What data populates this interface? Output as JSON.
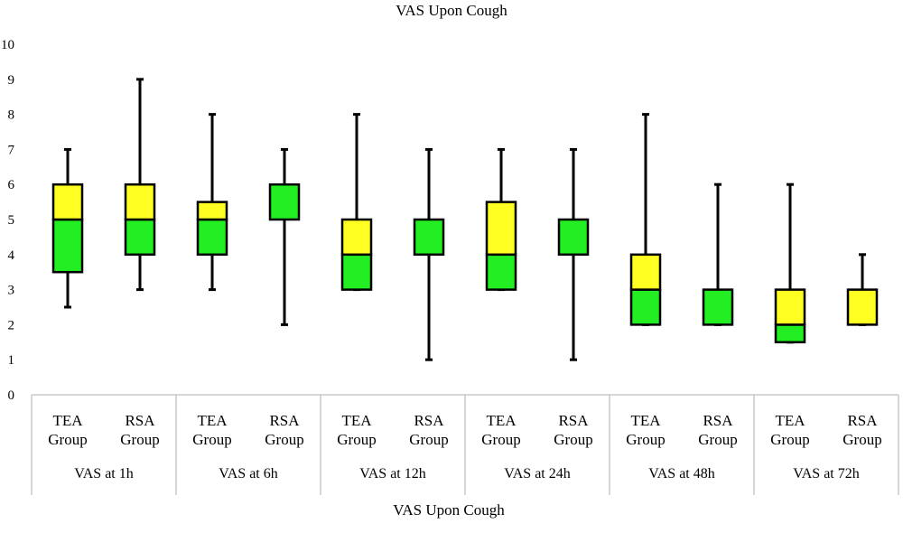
{
  "chart_data": {
    "type": "box",
    "title": "VAS Upon Cough",
    "xlabel": "VAS Upon Cough",
    "ylabel": "",
    "ylim": [
      0,
      10
    ],
    "yticks": [
      0,
      1,
      2,
      3,
      4,
      5,
      6,
      7,
      8,
      9,
      10
    ],
    "grid": false,
    "colors": {
      "lower_box": "#22ee22",
      "upper_box": "#ffff22",
      "line": "#000000"
    },
    "groups": [
      {
        "label": "VAS at 1h",
        "boxes": [
          {
            "label_line1": "TEA",
            "label_line2": "Group",
            "min": 2.5,
            "q1": 3.5,
            "median": 5,
            "q3": 6,
            "max": 7
          },
          {
            "label_line1": "RSA",
            "label_line2": "Group",
            "min": 3,
            "q1": 4,
            "median": 5,
            "q3": 6,
            "max": 9
          }
        ]
      },
      {
        "label": "VAS at 6h",
        "boxes": [
          {
            "label_line1": "TEA",
            "label_line2": "Group",
            "min": 3,
            "q1": 4,
            "median": 5,
            "q3": 5.5,
            "max": 8
          },
          {
            "label_line1": "RSA",
            "label_line2": "Group",
            "min": 2,
            "q1": 5,
            "median": 6,
            "q3": 6,
            "max": 7
          }
        ]
      },
      {
        "label": "VAS at 12h",
        "boxes": [
          {
            "label_line1": "TEA",
            "label_line2": "Group",
            "min": 3,
            "q1": 3,
            "median": 4,
            "q3": 5,
            "max": 8
          },
          {
            "label_line1": "RSA",
            "label_line2": "Group",
            "min": 1,
            "q1": 4,
            "median": 5,
            "q3": 5,
            "max": 7
          }
        ]
      },
      {
        "label": "VAS at 24h",
        "boxes": [
          {
            "label_line1": "TEA",
            "label_line2": "Group",
            "min": 3,
            "q1": 3,
            "median": 4,
            "q3": 5.5,
            "max": 7
          },
          {
            "label_line1": "RSA",
            "label_line2": "Group",
            "min": 1,
            "q1": 4,
            "median": 5,
            "q3": 5,
            "max": 7
          }
        ]
      },
      {
        "label": "VAS at 48h",
        "boxes": [
          {
            "label_line1": "TEA",
            "label_line2": "Group",
            "min": 2,
            "q1": 2,
            "median": 3,
            "q3": 4,
            "max": 8
          },
          {
            "label_line1": "RSA",
            "label_line2": "Group",
            "min": 2,
            "q1": 2,
            "median": 3,
            "q3": 3,
            "max": 6
          }
        ]
      },
      {
        "label": "VAS at 72h",
        "boxes": [
          {
            "label_line1": "TEA",
            "label_line2": "Group",
            "min": 1.5,
            "q1": 1.5,
            "median": 2,
            "q3": 3,
            "max": 6
          },
          {
            "label_line1": "RSA",
            "label_line2": "Group",
            "min": 2,
            "q1": 2,
            "median": 2,
            "q3": 3,
            "max": 4
          }
        ]
      }
    ]
  }
}
